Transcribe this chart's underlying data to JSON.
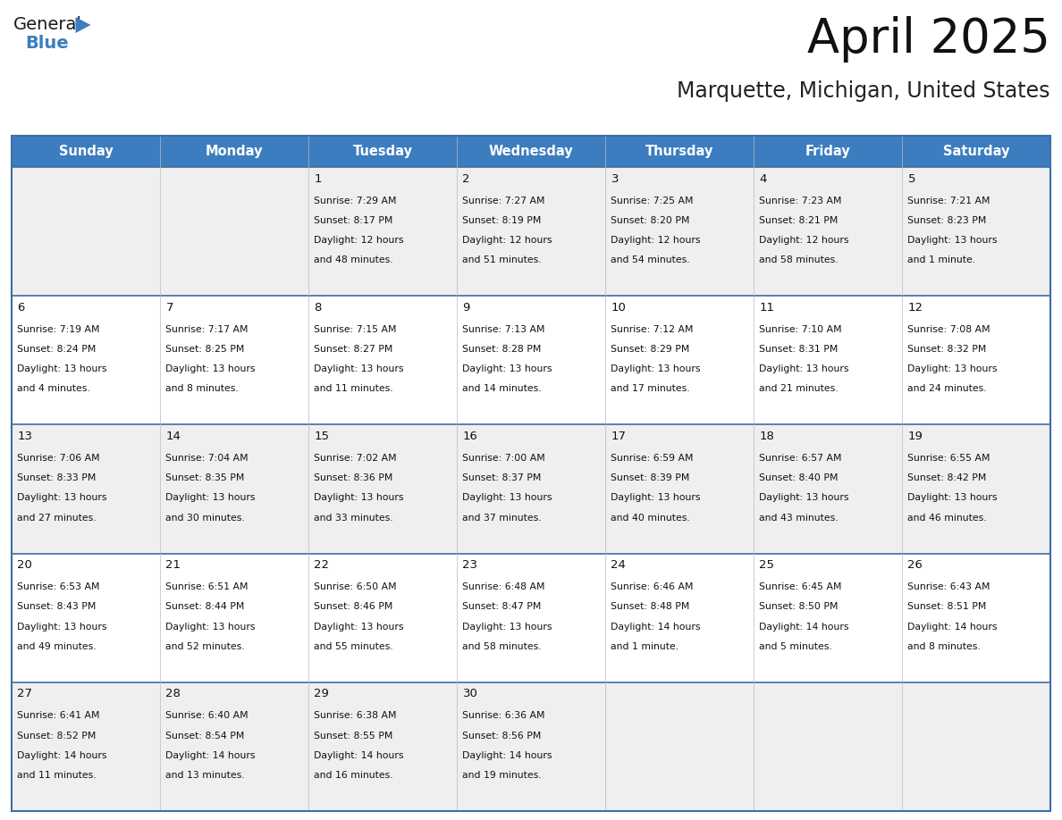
{
  "title": "April 2025",
  "subtitle": "Marquette, Michigan, United States",
  "header_bg": "#3C7DBF",
  "header_text_color": "#FFFFFF",
  "cell_bg_white": "#FFFFFF",
  "cell_bg_gray": "#EFEFEF",
  "row_bg_pattern": [
    1,
    0,
    1,
    0,
    1
  ],
  "border_color_strong": "#3C6EA5",
  "border_color_light": "#BBBBBB",
  "day_names": [
    "Sunday",
    "Monday",
    "Tuesday",
    "Wednesday",
    "Thursday",
    "Friday",
    "Saturday"
  ],
  "days": [
    {
      "day": 1,
      "col": 2,
      "row": 0,
      "sunrise": "7:29 AM",
      "sunset": "8:17 PM",
      "daylight": "12 hours and 48 minutes."
    },
    {
      "day": 2,
      "col": 3,
      "row": 0,
      "sunrise": "7:27 AM",
      "sunset": "8:19 PM",
      "daylight": "12 hours and 51 minutes."
    },
    {
      "day": 3,
      "col": 4,
      "row": 0,
      "sunrise": "7:25 AM",
      "sunset": "8:20 PM",
      "daylight": "12 hours and 54 minutes."
    },
    {
      "day": 4,
      "col": 5,
      "row": 0,
      "sunrise": "7:23 AM",
      "sunset": "8:21 PM",
      "daylight": "12 hours and 58 minutes."
    },
    {
      "day": 5,
      "col": 6,
      "row": 0,
      "sunrise": "7:21 AM",
      "sunset": "8:23 PM",
      "daylight": "13 hours and 1 minute."
    },
    {
      "day": 6,
      "col": 0,
      "row": 1,
      "sunrise": "7:19 AM",
      "sunset": "8:24 PM",
      "daylight": "13 hours and 4 minutes."
    },
    {
      "day": 7,
      "col": 1,
      "row": 1,
      "sunrise": "7:17 AM",
      "sunset": "8:25 PM",
      "daylight": "13 hours and 8 minutes."
    },
    {
      "day": 8,
      "col": 2,
      "row": 1,
      "sunrise": "7:15 AM",
      "sunset": "8:27 PM",
      "daylight": "13 hours and 11 minutes."
    },
    {
      "day": 9,
      "col": 3,
      "row": 1,
      "sunrise": "7:13 AM",
      "sunset": "8:28 PM",
      "daylight": "13 hours and 14 minutes."
    },
    {
      "day": 10,
      "col": 4,
      "row": 1,
      "sunrise": "7:12 AM",
      "sunset": "8:29 PM",
      "daylight": "13 hours and 17 minutes."
    },
    {
      "day": 11,
      "col": 5,
      "row": 1,
      "sunrise": "7:10 AM",
      "sunset": "8:31 PM",
      "daylight": "13 hours and 21 minutes."
    },
    {
      "day": 12,
      "col": 6,
      "row": 1,
      "sunrise": "7:08 AM",
      "sunset": "8:32 PM",
      "daylight": "13 hours and 24 minutes."
    },
    {
      "day": 13,
      "col": 0,
      "row": 2,
      "sunrise": "7:06 AM",
      "sunset": "8:33 PM",
      "daylight": "13 hours and 27 minutes."
    },
    {
      "day": 14,
      "col": 1,
      "row": 2,
      "sunrise": "7:04 AM",
      "sunset": "8:35 PM",
      "daylight": "13 hours and 30 minutes."
    },
    {
      "day": 15,
      "col": 2,
      "row": 2,
      "sunrise": "7:02 AM",
      "sunset": "8:36 PM",
      "daylight": "13 hours and 33 minutes."
    },
    {
      "day": 16,
      "col": 3,
      "row": 2,
      "sunrise": "7:00 AM",
      "sunset": "8:37 PM",
      "daylight": "13 hours and 37 minutes."
    },
    {
      "day": 17,
      "col": 4,
      "row": 2,
      "sunrise": "6:59 AM",
      "sunset": "8:39 PM",
      "daylight": "13 hours and 40 minutes."
    },
    {
      "day": 18,
      "col": 5,
      "row": 2,
      "sunrise": "6:57 AM",
      "sunset": "8:40 PM",
      "daylight": "13 hours and 43 minutes."
    },
    {
      "day": 19,
      "col": 6,
      "row": 2,
      "sunrise": "6:55 AM",
      "sunset": "8:42 PM",
      "daylight": "13 hours and 46 minutes."
    },
    {
      "day": 20,
      "col": 0,
      "row": 3,
      "sunrise": "6:53 AM",
      "sunset": "8:43 PM",
      "daylight": "13 hours and 49 minutes."
    },
    {
      "day": 21,
      "col": 1,
      "row": 3,
      "sunrise": "6:51 AM",
      "sunset": "8:44 PM",
      "daylight": "13 hours and 52 minutes."
    },
    {
      "day": 22,
      "col": 2,
      "row": 3,
      "sunrise": "6:50 AM",
      "sunset": "8:46 PM",
      "daylight": "13 hours and 55 minutes."
    },
    {
      "day": 23,
      "col": 3,
      "row": 3,
      "sunrise": "6:48 AM",
      "sunset": "8:47 PM",
      "daylight": "13 hours and 58 minutes."
    },
    {
      "day": 24,
      "col": 4,
      "row": 3,
      "sunrise": "6:46 AM",
      "sunset": "8:48 PM",
      "daylight": "14 hours and 1 minute."
    },
    {
      "day": 25,
      "col": 5,
      "row": 3,
      "sunrise": "6:45 AM",
      "sunset": "8:50 PM",
      "daylight": "14 hours and 5 minutes."
    },
    {
      "day": 26,
      "col": 6,
      "row": 3,
      "sunrise": "6:43 AM",
      "sunset": "8:51 PM",
      "daylight": "14 hours and 8 minutes."
    },
    {
      "day": 27,
      "col": 0,
      "row": 4,
      "sunrise": "6:41 AM",
      "sunset": "8:52 PM",
      "daylight": "14 hours and 11 minutes."
    },
    {
      "day": 28,
      "col": 1,
      "row": 4,
      "sunrise": "6:40 AM",
      "sunset": "8:54 PM",
      "daylight": "14 hours and 13 minutes."
    },
    {
      "day": 29,
      "col": 2,
      "row": 4,
      "sunrise": "6:38 AM",
      "sunset": "8:55 PM",
      "daylight": "14 hours and 16 minutes."
    },
    {
      "day": 30,
      "col": 3,
      "row": 4,
      "sunrise": "6:36 AM",
      "sunset": "8:56 PM",
      "daylight": "14 hours and 19 minutes."
    }
  ],
  "num_rows": 5,
  "num_cols": 7,
  "logo_text_general": "General",
  "logo_text_blue": "Blue",
  "logo_color_general": "#1a1a1a",
  "logo_color_blue": "#3C7DBF"
}
